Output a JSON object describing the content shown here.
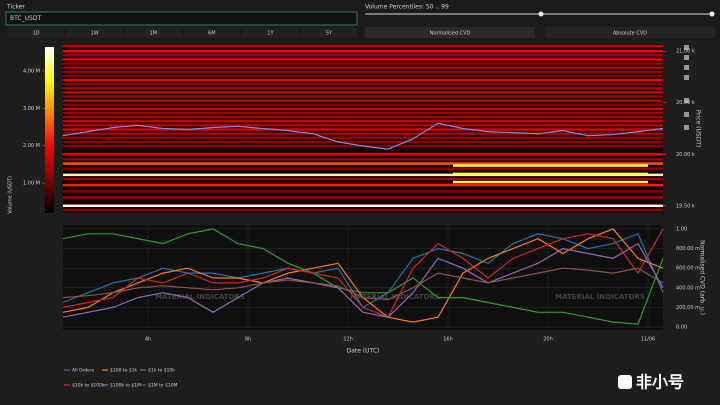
{
  "ui": {
    "ticker_label": "Ticker",
    "ticker_value": "BTC_USDT",
    "percentiles_label": "Volume Percentiles: 50 .. 99",
    "ranges": [
      "1D",
      "1W",
      "1M",
      "6M",
      "1Y",
      "5Y"
    ],
    "modes": [
      "Normalised CVD",
      "Absolute CVD"
    ],
    "watermark": "MATERIAL INDICATORS",
    "logo": "非小号"
  },
  "chart_data": [
    {
      "type": "heatmap",
      "ylabel": "Price (USDT)",
      "xlim": [
        0.6,
        24.6
      ],
      "ylim": [
        19430,
        21070
      ],
      "yticks": [
        {
          "value": 19500,
          "label": "19.50 k"
        },
        {
          "value": 20000,
          "label": "20.00 k"
        },
        {
          "value": 20500,
          "label": "20.50 k"
        },
        {
          "value": 21000,
          "label": "21.00 k"
        }
      ],
      "levels": {
        "y": [
          21050,
          21000,
          20960,
          20920,
          20880,
          20840,
          20800,
          20760,
          20720,
          20680,
          20640,
          20600,
          20560,
          20520,
          20480,
          20440,
          20400,
          20360,
          20320,
          20280,
          20240,
          20200,
          20160,
          20120,
          20080,
          20000,
          19950,
          19910,
          19860,
          19800,
          19760,
          19700,
          19640,
          19580,
          19500,
          19460,
          19890,
          19810,
          19730
        ],
        "x_from": [
          0.6,
          0.6,
          0.6,
          0.6,
          0.6,
          0.6,
          0.6,
          0.6,
          0.6,
          0.6,
          0.6,
          0.6,
          0.6,
          0.6,
          0.6,
          0.6,
          0.6,
          0.6,
          0.6,
          0.6,
          0.6,
          0.6,
          0.6,
          0.6,
          0.6,
          0.6,
          0.6,
          0.6,
          0.6,
          0.6,
          0.6,
          0.6,
          0.6,
          0.6,
          0.6,
          0.6,
          16.2,
          16.2,
          16.2
        ],
        "x_to": [
          24.6,
          24.6,
          24.6,
          24.6,
          24.6,
          24.6,
          24.6,
          24.6,
          24.6,
          24.6,
          24.6,
          24.6,
          24.6,
          24.6,
          24.6,
          24.6,
          24.6,
          24.6,
          24.6,
          24.6,
          24.6,
          24.6,
          24.6,
          24.6,
          24.6,
          24.6,
          24.6,
          24.6,
          24.6,
          24.6,
          24.6,
          24.6,
          24.6,
          24.6,
          24.6,
          24.6,
          24,
          24,
          24
        ],
        "values": [
          1600000,
          2000000,
          1400000,
          1800000,
          1200000,
          1500000,
          1300000,
          1100000,
          1900000,
          1200000,
          1400000,
          1600000,
          1300000,
          1500000,
          1200000,
          1700000,
          1300000,
          1400000,
          1600000,
          1500000,
          1800000,
          1400000,
          1300000,
          1200000,
          1100000,
          1900000,
          1300000,
          2600000,
          1200000,
          4400000,
          1300000,
          2200000,
          1100000,
          1400000,
          4600000,
          1200000,
          4000000,
          4000000,
          4000000
        ]
      },
      "colorbar": {
        "label": "Volume (USDT)",
        "zlim": [
          200000,
          4640000
        ],
        "ticks": [
          {
            "value": 1000000,
            "label": "1.00 M"
          },
          {
            "value": 2000000,
            "label": "2.00 M"
          },
          {
            "value": 3000000,
            "label": "3.00 M"
          },
          {
            "value": 4000000,
            "label": "4.00 M"
          }
        ]
      },
      "price_line": {
        "color": "#7b8ff0",
        "x": [
          0.6,
          1.6,
          2.6,
          3.6,
          4.6,
          5.6,
          6.6,
          7.6,
          8.6,
          9.6,
          10.6,
          11.6,
          12.6,
          13.6,
          14.6,
          15.6,
          16.6,
          17.6,
          18.6,
          19.6,
          20.6,
          21.6,
          22.6,
          23.6,
          24.6
        ],
        "values": [
          20180,
          20220,
          20260,
          20280,
          20250,
          20240,
          20260,
          20270,
          20250,
          20230,
          20200,
          20120,
          20080,
          20050,
          20150,
          20300,
          20250,
          20220,
          20210,
          20200,
          20230,
          20180,
          20190,
          20220,
          20250
        ]
      }
    },
    {
      "type": "line",
      "xlabel": "Date (UTC)",
      "ylabel": "Normalised CVD (arb. u.)",
      "grid": true,
      "x": [
        0.6,
        1.6,
        2.6,
        3.6,
        4.6,
        5.6,
        6.6,
        7.6,
        8.6,
        9.6,
        10.6,
        11.6,
        12.6,
        13.6,
        14.6,
        15.6,
        16.6,
        17.6,
        18.6,
        19.6,
        20.6,
        21.6,
        22.6,
        23.6,
        24.6
      ],
      "xlim": [
        0.6,
        24.6
      ],
      "xticks": [
        {
          "value": 4,
          "label": "4h"
        },
        {
          "value": 8,
          "label": "8h"
        },
        {
          "value": 12,
          "label": "12h"
        },
        {
          "value": 16,
          "label": "16h"
        },
        {
          "value": 20,
          "label": "20h"
        },
        {
          "value": 24,
          "label": "11/06"
        }
      ],
      "ylim": [
        -0.03,
        1.04
      ],
      "yticks": [
        {
          "value": 0,
          "label": "0.00"
        },
        {
          "value": 0.2,
          "label": "200.00 m"
        },
        {
          "value": 0.4,
          "label": "400.00 m"
        },
        {
          "value": 0.6,
          "label": "600.00 m"
        },
        {
          "value": 0.8,
          "label": "800.00 m"
        },
        {
          "value": 1,
          "label": "1.00"
        }
      ],
      "series": [
        {
          "name": "All Orders",
          "color": "#1f77b4",
          "values": [
            0.25,
            0.35,
            0.45,
            0.5,
            0.6,
            0.55,
            0.55,
            0.5,
            0.55,
            0.6,
            0.55,
            0.6,
            0.2,
            0.35,
            0.7,
            0.8,
            0.75,
            0.65,
            0.85,
            0.95,
            0.9,
            0.8,
            0.85,
            0.95,
            0.35
          ]
        },
        {
          "name": "$100 to $1k",
          "color": "#ff7f0e",
          "values": [
            0.15,
            0.2,
            0.35,
            0.45,
            0.55,
            0.6,
            0.5,
            0.5,
            0.45,
            0.55,
            0.6,
            0.65,
            0.3,
            0.1,
            0.05,
            0.1,
            0.55,
            0.7,
            0.8,
            0.9,
            0.75,
            0.9,
            1.0,
            0.7,
            0.6
          ]
        },
        {
          "name": "$1k to $10k",
          "color": "#2ca02c",
          "values": [
            0.9,
            0.95,
            0.95,
            0.9,
            0.85,
            0.95,
            1.0,
            0.85,
            0.8,
            0.65,
            0.55,
            0.4,
            0.35,
            0.35,
            0.5,
            0.3,
            0.3,
            0.25,
            0.2,
            0.15,
            0.15,
            0.1,
            0.05,
            0.03,
            0.7
          ]
        },
        {
          "name": "$10k to $100k",
          "color": "#d62728",
          "values": [
            0.2,
            0.25,
            0.3,
            0.5,
            0.45,
            0.55,
            0.45,
            0.45,
            0.5,
            0.6,
            0.55,
            0.5,
            0.2,
            0.1,
            0.6,
            0.85,
            0.7,
            0.5,
            0.7,
            0.8,
            0.9,
            0.95,
            0.9,
            0.55,
            1.0
          ]
        },
        {
          "name": "$100k to $1M",
          "color": "#9467bd",
          "values": [
            0.1,
            0.15,
            0.2,
            0.3,
            0.35,
            0.3,
            0.15,
            0.3,
            0.45,
            0.5,
            0.45,
            0.4,
            0.15,
            0.1,
            0.35,
            0.7,
            0.6,
            0.45,
            0.55,
            0.65,
            0.8,
            0.75,
            0.7,
            0.85,
            0.4
          ]
        },
        {
          "name": "$1M to $10M",
          "color": "#8c564b",
          "values": [
            0.3,
            0.32,
            0.35,
            0.4,
            0.42,
            0.4,
            0.38,
            0.4,
            0.45,
            0.48,
            0.45,
            0.42,
            0.3,
            0.28,
            0.4,
            0.55,
            0.5,
            0.45,
            0.5,
            0.55,
            0.6,
            0.58,
            0.55,
            0.6,
            0.45
          ]
        }
      ]
    }
  ]
}
